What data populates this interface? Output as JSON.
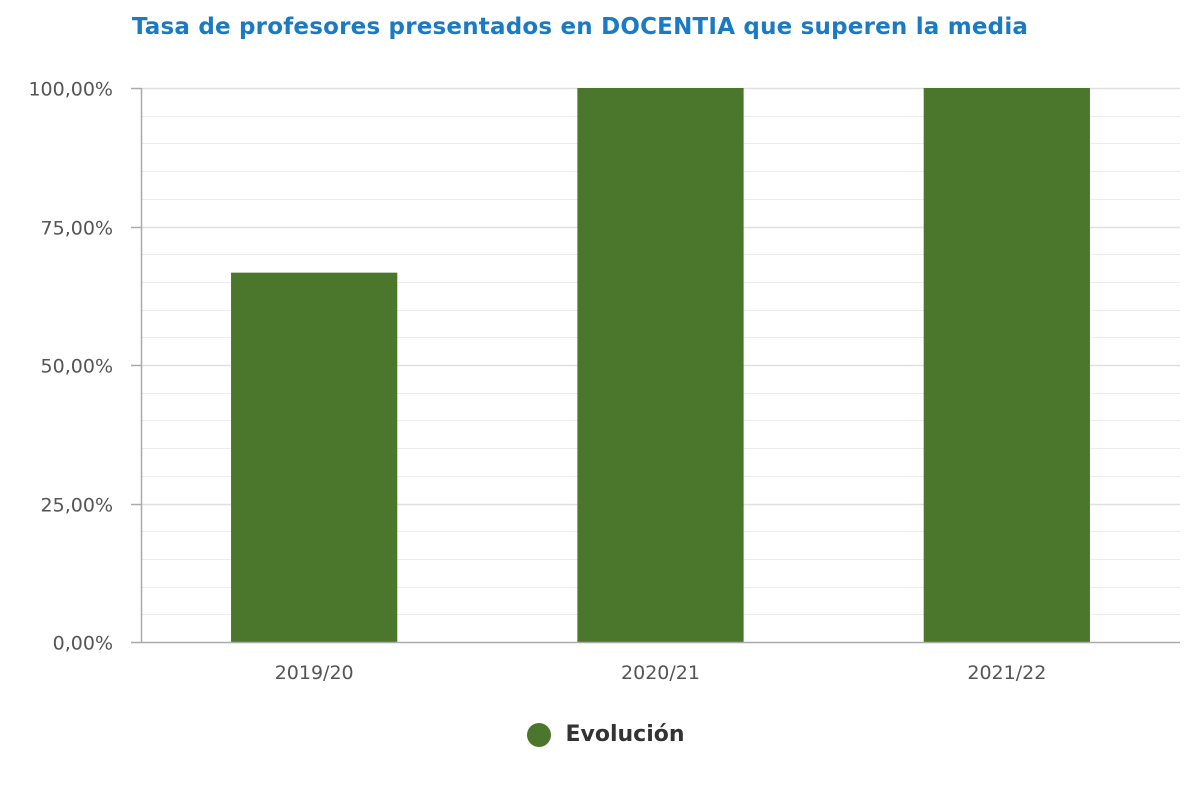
{
  "chart_data": {
    "type": "bar",
    "title": "Tasa de profesores presentados en DOCENTIA que superen la media",
    "xlabel": "",
    "ylabel": "",
    "categories": [
      "2019/20",
      "2020/21",
      "2021/22"
    ],
    "series": [
      {
        "name": "Evolución",
        "values": [
          66.67,
          100,
          100
        ],
        "color": "#4a772b"
      }
    ],
    "ylim": [
      0,
      100
    ],
    "yticks": [
      0,
      25,
      50,
      75,
      100
    ],
    "ytick_labels": [
      "0,00%",
      "25,00%",
      "50,00%",
      "75,00%",
      "100,00%"
    ],
    "grid": true,
    "legend_position": "bottom-center"
  },
  "colors": {
    "title": "#1a7ac4",
    "bar": "#4a772b",
    "grid": "#e0e0e0",
    "axis": "#aaaaaa",
    "tick_text": "#555555"
  }
}
